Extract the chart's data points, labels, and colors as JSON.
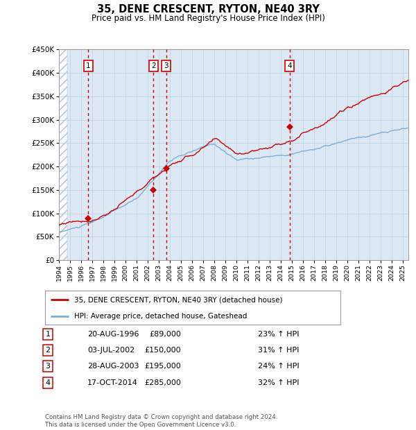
{
  "title": "35, DENE CRESCENT, RYTON, NE40 3RY",
  "subtitle": "Price paid vs. HM Land Registry's House Price Index (HPI)",
  "footer": "Contains HM Land Registry data © Crown copyright and database right 2024.\nThis data is licensed under the Open Government Licence v3.0.",
  "legend_line1": "35, DENE CRESCENT, RYTON, NE40 3RY (detached house)",
  "legend_line2": "HPI: Average price, detached house, Gateshead",
  "transactions": [
    {
      "label": "1",
      "date": "20-AUG-1996",
      "price": "£89,000",
      "pct": "23% ↑ HPI",
      "year": 1996.64,
      "price_val": 89000
    },
    {
      "label": "2",
      "date": "03-JUL-2002",
      "price": "£150,000",
      "pct": "31% ↑ HPI",
      "year": 2002.5,
      "price_val": 150000
    },
    {
      "label": "3",
      "date": "28-AUG-2003",
      "price": "£195,000",
      "pct": "24% ↑ HPI",
      "year": 2003.66,
      "price_val": 195000
    },
    {
      "label": "4",
      "date": "17-OCT-2014",
      "price": "£285,000",
      "pct": "32% ↑ HPI",
      "year": 2014.79,
      "price_val": 285000
    }
  ],
  "hpi_color": "#7bafd4",
  "price_color": "#cc0000",
  "dashed_color": "#cc0000",
  "bg_color": "#dce9f5",
  "grid_color": "#b8cfe0",
  "xmin": 1994.0,
  "xmax": 2025.5,
  "ymin": 0,
  "ymax": 450000,
  "yticks": [
    0,
    50000,
    100000,
    150000,
    200000,
    250000,
    300000,
    350000,
    400000,
    450000
  ],
  "hpi_seed": 10,
  "price_seed": 77
}
